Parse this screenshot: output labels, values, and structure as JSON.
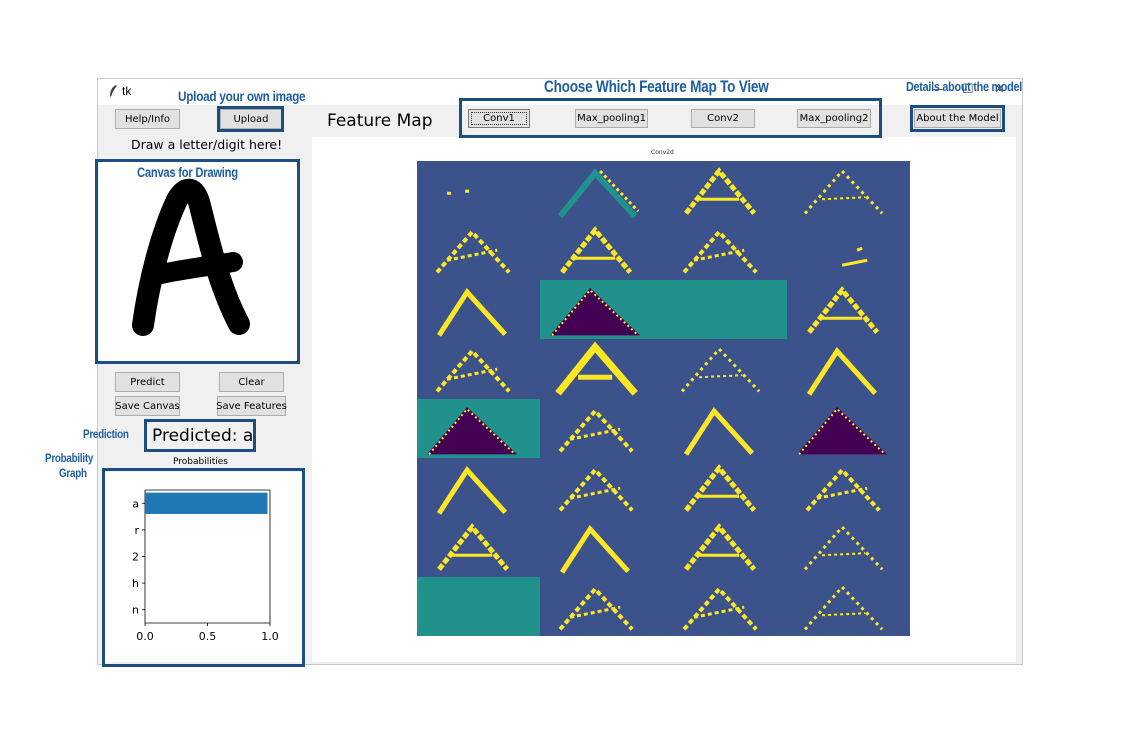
{
  "window": {
    "title": "tk",
    "minimize": "—",
    "maximize": "☐",
    "close": "✕"
  },
  "annotations": {
    "upload": "Upload your own image",
    "choose": "Choose Which Feature Map To View",
    "details": "Details about the model",
    "canvas": "Canvas for Drawing",
    "prediction": "Prediction",
    "probability_line1": "Probability",
    "probability_line2": "Graph"
  },
  "left_panel": {
    "help_label": "Help/Info",
    "upload_label": "Upload",
    "draw_prompt": "Draw a letter/digit here!",
    "predict_label": "Predict",
    "clear_label": "Clear",
    "save_canvas_label": "Save Canvas",
    "save_features_label": "Save Features",
    "prediction_text": "Predicted: a",
    "probabilities_title": "Probabilities"
  },
  "feature_map": {
    "heading": "Feature Map",
    "tabs": [
      {
        "label": "Conv1",
        "selected": true
      },
      {
        "label": "Max_pooling1",
        "selected": false
      },
      {
        "label": "Conv2",
        "selected": false
      },
      {
        "label": "Max_pooling2",
        "selected": false
      }
    ],
    "about_label": "About the Model",
    "plot_title": "Conv2d",
    "colormap": [
      "#440154",
      "#3b528b",
      "#21918c",
      "#5ec962",
      "#fde725"
    ]
  },
  "chart_data": {
    "type": "bar",
    "orientation": "horizontal",
    "title": "Probabilities",
    "categories": [
      "a",
      "r",
      "2",
      "h",
      "n"
    ],
    "values": [
      0.98,
      0.0,
      0.0,
      0.0,
      0.0
    ],
    "xlim": [
      0.0,
      1.0
    ],
    "xticks": [
      "0.0",
      "0.5",
      "1.0"
    ],
    "bar_color": "#1f77b4"
  },
  "colors": {
    "annotation": "#1f5fa0",
    "annotation_box": "#1c4e80"
  }
}
